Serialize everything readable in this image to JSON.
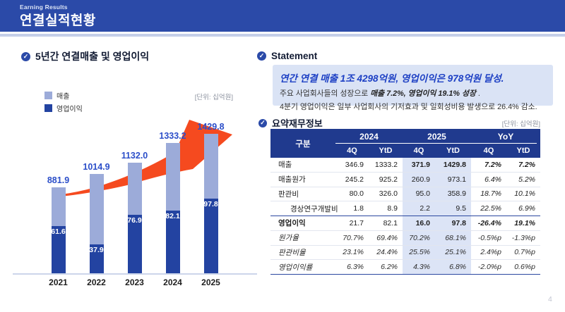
{
  "header": {
    "eyebrow": "Earning Results",
    "title": "연결실적현황"
  },
  "chart_section": {
    "title": "5년간 연결매출 및 영업이익",
    "unit_label": "[단위: 십억원]",
    "legend": [
      {
        "label": "매출",
        "color": "#9cabd9"
      },
      {
        "label": "영업이익",
        "color": "#2343a1"
      }
    ]
  },
  "chart_data": {
    "type": "bar",
    "categories": [
      "2021",
      "2022",
      "2023",
      "2024",
      "2025"
    ],
    "series": [
      {
        "name": "매출",
        "values": [
          881.9,
          1014.9,
          1132.0,
          1333.2,
          1429.8
        ]
      },
      {
        "name": "영업이익",
        "values": [
          61.6,
          37.9,
          76.9,
          82.1,
          97.8
        ]
      }
    ],
    "value_labels": {
      "매출": [
        "881.9",
        "1014.9",
        "1132.0",
        "1333.2",
        "1429.8"
      ],
      "영업이익": [
        "61.6",
        "37.9",
        "76.9",
        "82.1",
        "97.8"
      ]
    },
    "title": "5년간 연결매출 및 영업이익",
    "unit": "십억원",
    "legend_position": "top-left",
    "grid": false,
    "annotation": "orange upward growth arrow swoosh"
  },
  "statement": {
    "title": "Statement",
    "headline": "연간 연결 매출 1조 4298억원, 영업이익은 978억원 달성.",
    "line2_prefix": "주요 사업회사들의 성장으로 ",
    "line2_bold": "매출 7.2%, 영업이익 19.1% 성장",
    "line2_suffix": " .",
    "line3": "4분기 영업이익은 일부 사업회사의 기저효과 및 일회성비용 발생으로 26.4% 감소."
  },
  "table_section": {
    "title": "요약재무정보",
    "unit_label": "[단위: 십억원]",
    "label_header": "구분",
    "col_groups": [
      "2024",
      "2025",
      "YoY"
    ],
    "sub_headers": [
      "4Q",
      "YtD",
      "4Q",
      "YtD",
      "4Q",
      "YtD"
    ],
    "rows": [
      {
        "label": "매출",
        "values": [
          "346.9",
          "1333.2",
          "371.9",
          "1429.8",
          "7.2%",
          "7.2%"
        ],
        "style": "first"
      },
      {
        "label": "매출원가",
        "values": [
          "245.2",
          "925.2",
          "260.9",
          "973.1",
          "6.4%",
          "5.2%"
        ],
        "style": "normal"
      },
      {
        "label": "판관비",
        "values": [
          "80.0",
          "326.0",
          "95.0",
          "358.9",
          "18.7%",
          "10.1%"
        ],
        "style": "normal"
      },
      {
        "label": "경상연구개발비",
        "values": [
          "1.8",
          "8.9",
          "2.2",
          "9.5",
          "22.5%",
          "6.9%"
        ],
        "style": "indent"
      },
      {
        "label": "영업이익",
        "values": [
          "21.7",
          "82.1",
          "16.0",
          "97.8",
          "-26.4%",
          "19.1%"
        ],
        "style": "emphasis"
      },
      {
        "label": "원가율",
        "values": [
          "70.7%",
          "69.4%",
          "70.2%",
          "68.1%",
          "-0.5%p",
          "-1.3%p"
        ],
        "style": "ratio"
      },
      {
        "label": "판관비율",
        "values": [
          "23.1%",
          "24.4%",
          "25.5%",
          "25.1%",
          "2.4%p",
          "0.7%p"
        ],
        "style": "ratio"
      },
      {
        "label": "영업이익률",
        "values": [
          "6.3%",
          "6.2%",
          "4.3%",
          "6.8%",
          "-2.0%p",
          "0.6%p"
        ],
        "style": "ratio"
      }
    ]
  },
  "page_number": "4",
  "colors": {
    "header_bar": "#2b4aa8",
    "header_strip": "#c5cfe9",
    "table_header": "#203a8e",
    "bar_revenue": "#9cabd9",
    "bar_profit": "#2343a1",
    "chart_label_blue": "#2b4ec9",
    "arrow_orange": "#f54a1f",
    "highlight_column": "#dce4f6",
    "statement_box": "#dae3f5",
    "statement_headline": "#1c3fc4"
  }
}
